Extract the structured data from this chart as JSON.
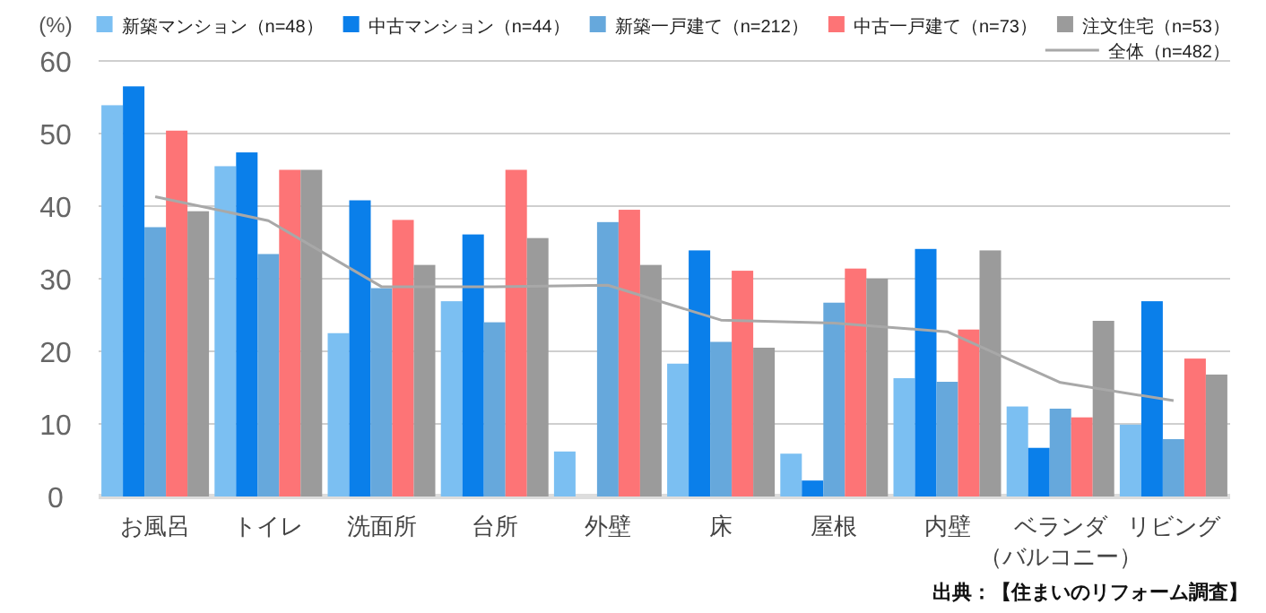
{
  "chart_data": {
    "type": "bar",
    "ylabel": "(%)",
    "categories": [
      "お風呂",
      "トイレ",
      "洗面所",
      "台所",
      "外壁",
      "床",
      "屋根",
      "内壁",
      "ベランダ（バルコニー）",
      "リビング"
    ],
    "series": [
      {
        "name": "新築マンション（n=48）",
        "color": "#7bbff2",
        "values": [
          53.9,
          45.5,
          22.5,
          26.9,
          6.2,
          18.3,
          5.9,
          16.3,
          12.4,
          9.9
        ]
      },
      {
        "name": "中古マンション（n=44）",
        "color": "#0a7fea",
        "values": [
          56.5,
          47.4,
          40.8,
          36.1,
          0,
          33.9,
          2.2,
          34.1,
          6.7,
          26.9
        ]
      },
      {
        "name": "新築一戸建て（n=212）",
        "color": "#66a8dc",
        "values": [
          37.1,
          33.4,
          28.7,
          24.0,
          37.8,
          21.3,
          26.7,
          15.8,
          12.1,
          7.9
        ]
      },
      {
        "name": "中古一戸建て（n=73）",
        "color": "#fd7476",
        "values": [
          50.4,
          45.0,
          38.1,
          45.0,
          39.5,
          31.1,
          31.4,
          23.0,
          10.9,
          19.0
        ]
      },
      {
        "name": "注文住宅（n=53）",
        "color": "#9b9b9b",
        "values": [
          39.3,
          45.0,
          31.9,
          35.6,
          31.9,
          20.5,
          30.0,
          33.9,
          24.2,
          16.8
        ]
      },
      {
        "name": "全体（n=482）",
        "type": "line",
        "color": "#a8a8a8",
        "values": [
          41.3,
          38.0,
          28.9,
          28.9,
          29.1,
          24.3,
          23.9,
          22.7,
          15.7,
          13.2
        ]
      }
    ],
    "ylim": [
      0,
      60
    ],
    "yticks": [
      0,
      10,
      20,
      30,
      40,
      50,
      60
    ],
    "grid": "y",
    "legend": "top right",
    "annotations": [
      "出典：【住まいのリフォーム調査】"
    ]
  }
}
